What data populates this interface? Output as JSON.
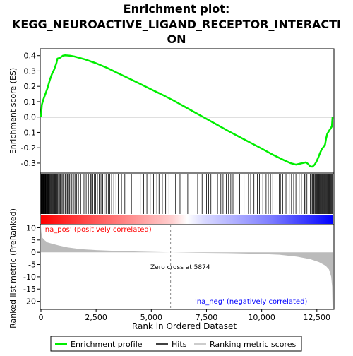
{
  "chart_data": {
    "type": "line",
    "title_lines": [
      "Enrichment plot:",
      "KEGG_NEUROACTIVE_LIGAND_RECEPTOR_INTERACTI",
      "ON"
    ],
    "colors": {
      "enrichment": "#00ee00",
      "hits": "#000000",
      "ranking": "#bbbbbb",
      "pos": "#ff0000",
      "neg": "#0000ff"
    },
    "top_panel": {
      "ylabel": "Enrichment score (ES)",
      "ylim": [
        -0.36,
        0.44
      ],
      "yticks": [
        "0.4",
        "0.3",
        "0.2",
        "0.1",
        "0.0",
        "-0.1",
        "-0.2",
        "-0.3"
      ],
      "ytick_values": [
        0.4,
        0.3,
        0.2,
        0.1,
        0.0,
        -0.1,
        -0.2,
        -0.3
      ],
      "es_curve": [
        [
          0,
          0.0
        ],
        [
          40,
          0.08
        ],
        [
          100,
          0.11
        ],
        [
          200,
          0.15
        ],
        [
          300,
          0.19
        ],
        [
          400,
          0.24
        ],
        [
          500,
          0.28
        ],
        [
          600,
          0.31
        ],
        [
          700,
          0.35
        ],
        [
          750,
          0.38
        ],
        [
          850,
          0.385
        ],
        [
          1000,
          0.4
        ],
        [
          1100,
          0.402
        ],
        [
          1300,
          0.4
        ],
        [
          1500,
          0.395
        ],
        [
          2000,
          0.375
        ],
        [
          2500,
          0.35
        ],
        [
          3000,
          0.32
        ],
        [
          3500,
          0.285
        ],
        [
          4000,
          0.25
        ],
        [
          4500,
          0.215
        ],
        [
          5000,
          0.18
        ],
        [
          5500,
          0.145
        ],
        [
          6000,
          0.108
        ],
        [
          6500,
          0.068
        ],
        [
          7000,
          0.028
        ],
        [
          7500,
          -0.012
        ],
        [
          8000,
          -0.052
        ],
        [
          8500,
          -0.092
        ],
        [
          9000,
          -0.13
        ],
        [
          9500,
          -0.168
        ],
        [
          10000,
          -0.205
        ],
        [
          10500,
          -0.245
        ],
        [
          11000,
          -0.28
        ],
        [
          11300,
          -0.3
        ],
        [
          11550,
          -0.31
        ],
        [
          11850,
          -0.3
        ],
        [
          12000,
          -0.295
        ],
        [
          12100,
          -0.305
        ],
        [
          12200,
          -0.322
        ],
        [
          12300,
          -0.323
        ],
        [
          12400,
          -0.31
        ],
        [
          12480,
          -0.29
        ],
        [
          12560,
          -0.265
        ],
        [
          12640,
          -0.235
        ],
        [
          12720,
          -0.21
        ],
        [
          12800,
          -0.195
        ],
        [
          12870,
          -0.18
        ],
        [
          12920,
          -0.14
        ],
        [
          12970,
          -0.11
        ],
        [
          13050,
          -0.09
        ],
        [
          13120,
          -0.075
        ],
        [
          13180,
          -0.06
        ],
        [
          13200,
          -0.02
        ],
        [
          13210,
          0.0
        ]
      ]
    },
    "hits": {
      "note_range": [
        0,
        13210
      ],
      "positions": [
        5,
        20,
        35,
        50,
        65,
        80,
        95,
        110,
        125,
        140,
        160,
        180,
        200,
        220,
        240,
        260,
        280,
        300,
        320,
        340,
        360,
        380,
        400,
        430,
        460,
        490,
        520,
        550,
        580,
        610,
        640,
        670,
        700,
        730,
        760,
        800,
        840,
        880,
        920,
        960,
        1000,
        1050,
        1100,
        1150,
        1200,
        1250,
        1300,
        1350,
        1400,
        1450,
        1500,
        1560,
        1620,
        1700,
        1800,
        1900,
        1950,
        2050,
        2150,
        2250,
        2300,
        2350,
        2420,
        2480,
        2560,
        2640,
        2720,
        2800,
        2870,
        2950,
        3050,
        3120,
        3200,
        3300,
        3400,
        3500,
        3650,
        3800,
        3950,
        4100,
        4300,
        4500,
        4650,
        4800,
        4950,
        5100,
        5250,
        5350,
        5500,
        5650,
        5800,
        6100,
        6300,
        6650,
        6700,
        6800,
        7100,
        7300,
        7500,
        7600,
        7700,
        8000,
        8150,
        8250,
        8400,
        8500,
        8600,
        8700,
        9000,
        9200,
        9400,
        9500,
        9650,
        9800,
        9900,
        10050,
        10200,
        10300,
        10400,
        10500,
        10600,
        10700,
        10800,
        10850,
        10950,
        11050,
        11100,
        11150,
        11250,
        11350,
        11450,
        11550,
        11700,
        11800,
        11950,
        12000,
        12050,
        12200,
        12250,
        12300,
        12350,
        12380,
        12420,
        12450,
        12480,
        12510,
        12540,
        12570,
        12600,
        12630,
        12660,
        12690,
        12720,
        12750,
        12780,
        12810,
        12840,
        12870,
        12900,
        12930,
        12960,
        12990,
        13020,
        13050,
        13080,
        13110,
        13140,
        13170,
        13200
      ]
    },
    "bottom_panel": {
      "ylabel": "Ranked list metric (PreRanked)",
      "xlabel": "Rank in Ordered Dataset",
      "ylim": [
        -23,
        11
      ],
      "yticks": [
        "10",
        "5",
        "0",
        "-5",
        "-10",
        "-15",
        "-20"
      ],
      "ytick_values": [
        10,
        5,
        0,
        -5,
        -10,
        -15,
        -20
      ],
      "xlim": [
        0,
        13210
      ],
      "xticks": [
        "0",
        "2,500",
        "5,000",
        "7,500",
        "10,000",
        "12,500"
      ],
      "xtick_values": [
        0,
        2500,
        5000,
        7500,
        10000,
        12500
      ],
      "zero_cross_rank": 5874,
      "zero_cross_label": "Zero cross at 5874",
      "pos_label": "'na_pos' (positively correlated)",
      "neg_label": "'na_neg' (negatively correlated)",
      "ranking_curve": [
        [
          0,
          10.5
        ],
        [
          20,
          8
        ],
        [
          60,
          6
        ],
        [
          150,
          5
        ],
        [
          300,
          4
        ],
        [
          500,
          3.5
        ],
        [
          800,
          2.8
        ],
        [
          1200,
          2
        ],
        [
          1800,
          1.3
        ],
        [
          2500,
          0.9
        ],
        [
          3500,
          0.5
        ],
        [
          4500,
          0.25
        ],
        [
          5874,
          0
        ],
        [
          7000,
          -0.2
        ],
        [
          8500,
          -0.35
        ],
        [
          9800,
          -0.6
        ],
        [
          10800,
          -1
        ],
        [
          11600,
          -1.8
        ],
        [
          12200,
          -2.8
        ],
        [
          12600,
          -4
        ],
        [
          12900,
          -5.5
        ],
        [
          13050,
          -7
        ],
        [
          13150,
          -10
        ],
        [
          13190,
          -14
        ],
        [
          13210,
          -22
        ]
      ]
    },
    "legend": [
      "Enrichment profile",
      "Hits",
      "Ranking metric scores"
    ]
  }
}
